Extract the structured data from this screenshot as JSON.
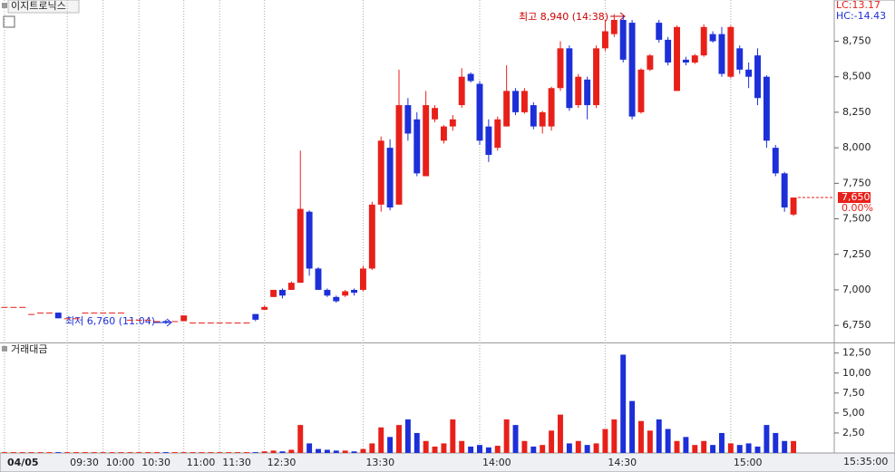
{
  "chart_data": [
    {
      "type": "candlestick",
      "title": "이지트로닉스",
      "legend_items": [
        "LC:13.17",
        "HC:-14.43"
      ],
      "up_color": "#e8201a",
      "down_color": "#1c2fd8",
      "categories": [
        "04/05",
        null,
        null,
        null,
        null,
        null,
        null,
        "09:30",
        null,
        null,
        null,
        "10:00",
        null,
        null,
        null,
        "10:30",
        null,
        null,
        null,
        null,
        "11:00",
        null,
        null,
        null,
        "11:30",
        null,
        null,
        null,
        null,
        "12:30",
        null,
        null,
        null,
        null,
        null,
        null,
        null,
        null,
        null,
        null,
        "13:30",
        null,
        null,
        null,
        null,
        null,
        null,
        null,
        null,
        null,
        null,
        null,
        null,
        "14:00",
        null,
        null,
        null,
        null,
        null,
        null,
        null,
        null,
        null,
        null,
        null,
        null,
        null,
        "14:30",
        null,
        null,
        null,
        null,
        null,
        null,
        null,
        null,
        null,
        null,
        null,
        null,
        null,
        "15:00",
        null,
        null,
        null,
        null,
        null,
        null,
        null
      ],
      "x_end_label": "15:35:00",
      "open": [
        6880,
        6880,
        6880,
        6830,
        6840,
        6840,
        6840,
        6800,
        6800,
        6840,
        6840,
        6840,
        6840,
        6840,
        6790,
        6790,
        6790,
        6780,
        6780,
        6780,
        6780,
        6770,
        6770,
        6770,
        6770,
        6770,
        6770,
        6770,
        6830,
        6860,
        6950,
        7000,
        7000,
        7050,
        7550,
        7150,
        7000,
        6950,
        6960,
        7000,
        7000,
        7150,
        7600,
        8000,
        7600,
        8300,
        8200,
        7800,
        8200,
        8050,
        8150,
        8300,
        8520,
        8450,
        8150,
        8000,
        8150,
        8400,
        8250,
        8300,
        8150,
        8150,
        8420,
        8700,
        8300,
        8480,
        8300,
        8700,
        8800,
        8900,
        8880,
        8250,
        8550,
        8880,
        8760,
        8400,
        8620,
        8600,
        8650,
        8800,
        8800,
        8500,
        8700,
        8550,
        8650,
        8500,
        8000,
        7820,
        7530
      ],
      "high": [
        6880,
        6880,
        6880,
        6830,
        6840,
        6840,
        6840,
        6800,
        6800,
        6840,
        6840,
        6840,
        6840,
        6840,
        6790,
        6790,
        6790,
        6780,
        6790,
        6780,
        6820,
        6770,
        6770,
        6770,
        6770,
        6770,
        6770,
        6770,
        6830,
        6890,
        7000,
        7010,
        7060,
        7980,
        7560,
        7160,
        7010,
        6960,
        7000,
        7010,
        7170,
        7620,
        8080,
        8060,
        8550,
        8350,
        8250,
        8400,
        8300,
        8160,
        8230,
        8560,
        8530,
        8470,
        8200,
        8220,
        8580,
        8420,
        8420,
        8320,
        8260,
        8430,
        8750,
        8720,
        8520,
        8500,
        8720,
        8900,
        8940,
        8930,
        8900,
        8560,
        8660,
        8900,
        8780,
        8860,
        8640,
        8660,
        8870,
        8820,
        8850,
        8860,
        8720,
        8600,
        8700,
        8510,
        8020,
        7830,
        7650
      ],
      "low": [
        6880,
        6880,
        6880,
        6830,
        6840,
        6840,
        6800,
        6800,
        6800,
        6840,
        6840,
        6840,
        6840,
        6840,
        6790,
        6790,
        6790,
        6780,
        6760,
        6780,
        6780,
        6770,
        6770,
        6770,
        6770,
        6770,
        6770,
        6770,
        6780,
        6860,
        6950,
        6940,
        7000,
        7050,
        7100,
        7000,
        6950,
        6910,
        6950,
        6960,
        6990,
        7140,
        7550,
        7560,
        7600,
        8050,
        7800,
        7800,
        8180,
        8030,
        8120,
        8280,
        8460,
        8020,
        7900,
        7980,
        8150,
        8230,
        8240,
        8130,
        8100,
        8120,
        8400,
        8260,
        8280,
        8200,
        8280,
        8680,
        8780,
        8600,
        8200,
        8240,
        8540,
        8740,
        8580,
        8400,
        8580,
        8590,
        8640,
        8740,
        8500,
        8490,
        8520,
        8420,
        8300,
        8000,
        7800,
        7550,
        7520
      ],
      "close": [
        6880,
        6880,
        6880,
        6830,
        6840,
        6840,
        6800,
        6800,
        6800,
        6840,
        6840,
        6840,
        6840,
        6840,
        6790,
        6790,
        6790,
        6780,
        6770,
        6780,
        6820,
        6770,
        6770,
        6770,
        6770,
        6770,
        6770,
        6770,
        6790,
        6880,
        7000,
        6960,
        7050,
        7570,
        7150,
        7000,
        6960,
        6920,
        6990,
        6980,
        7150,
        7600,
        8050,
        7580,
        8300,
        8100,
        7820,
        8300,
        8280,
        8150,
        8200,
        8500,
        8470,
        8050,
        7950,
        8200,
        8400,
        8250,
        8400,
        8150,
        8250,
        8420,
        8700,
        8280,
        8500,
        8300,
        8700,
        8820,
        8900,
        8620,
        8220,
        8550,
        8650,
        8760,
        8600,
        8850,
        8600,
        8650,
        8850,
        8750,
        8520,
        8850,
        8550,
        8500,
        8350,
        8050,
        7820,
        7580,
        7650
      ],
      "ylim": [
        6630,
        9040
      ],
      "yticks": [
        {
          "value": 6750,
          "label": "6,750"
        },
        {
          "value": 7000,
          "label": "7,000"
        },
        {
          "value": 7250,
          "label": "7,250"
        },
        {
          "value": 7500,
          "label": "7,500"
        },
        {
          "value": 7750,
          "label": "7,750"
        },
        {
          "value": 8000,
          "label": "8,000"
        },
        {
          "value": 8250,
          "label": "8,250"
        },
        {
          "value": 8500,
          "label": "8,500"
        },
        {
          "value": 8750,
          "label": "8,750"
        }
      ],
      "current": {
        "value": 7650,
        "label": "7,650"
      },
      "change": "0.00%",
      "annotations": [
        "최고 8,940 (14:38)",
        "최저 6,760 (11:04)"
      ]
    },
    {
      "type": "bar",
      "title": "거래대금",
      "values": [
        0.1,
        0.1,
        0.1,
        0.1,
        0.1,
        0.1,
        0.1,
        0.1,
        0.1,
        0.1,
        0.1,
        0.1,
        0.1,
        0.1,
        0.1,
        0.1,
        0.1,
        0.1,
        0.1,
        0.1,
        0.1,
        0.1,
        0.1,
        0.1,
        0.1,
        0.1,
        0.1,
        0.1,
        0.1,
        0.2,
        0.3,
        0.2,
        0.4,
        3.5,
        1.2,
        0.5,
        0.4,
        0.3,
        0.3,
        0.2,
        0.5,
        1.2,
        3.2,
        2.0,
        3.5,
        4.2,
        2.5,
        1.5,
        0.8,
        1.2,
        4.2,
        1.5,
        0.8,
        1.0,
        0.7,
        0.9,
        4.2,
        3.5,
        1.5,
        0.8,
        1.0,
        2.8,
        4.8,
        1.2,
        1.5,
        1.0,
        1.2,
        3.0,
        4.2,
        12.3,
        6.5,
        4.0,
        2.8,
        4.2,
        3.0,
        1.5,
        2.0,
        1.0,
        1.5,
        1.0,
        2.5,
        1.2,
        1.0,
        1.2,
        0.8,
        3.5,
        2.5,
        1.5,
        1.5
      ],
      "ylim": [
        0,
        13.6
      ],
      "yticks": [
        {
          "value": 2.5,
          "label": "2,50"
        },
        {
          "value": 5,
          "label": "5,00"
        },
        {
          "value": 7.5,
          "label": "7,50"
        },
        {
          "value": 10,
          "label": "10,00"
        },
        {
          "value": 12.5,
          "label": "12,50"
        }
      ]
    }
  ]
}
